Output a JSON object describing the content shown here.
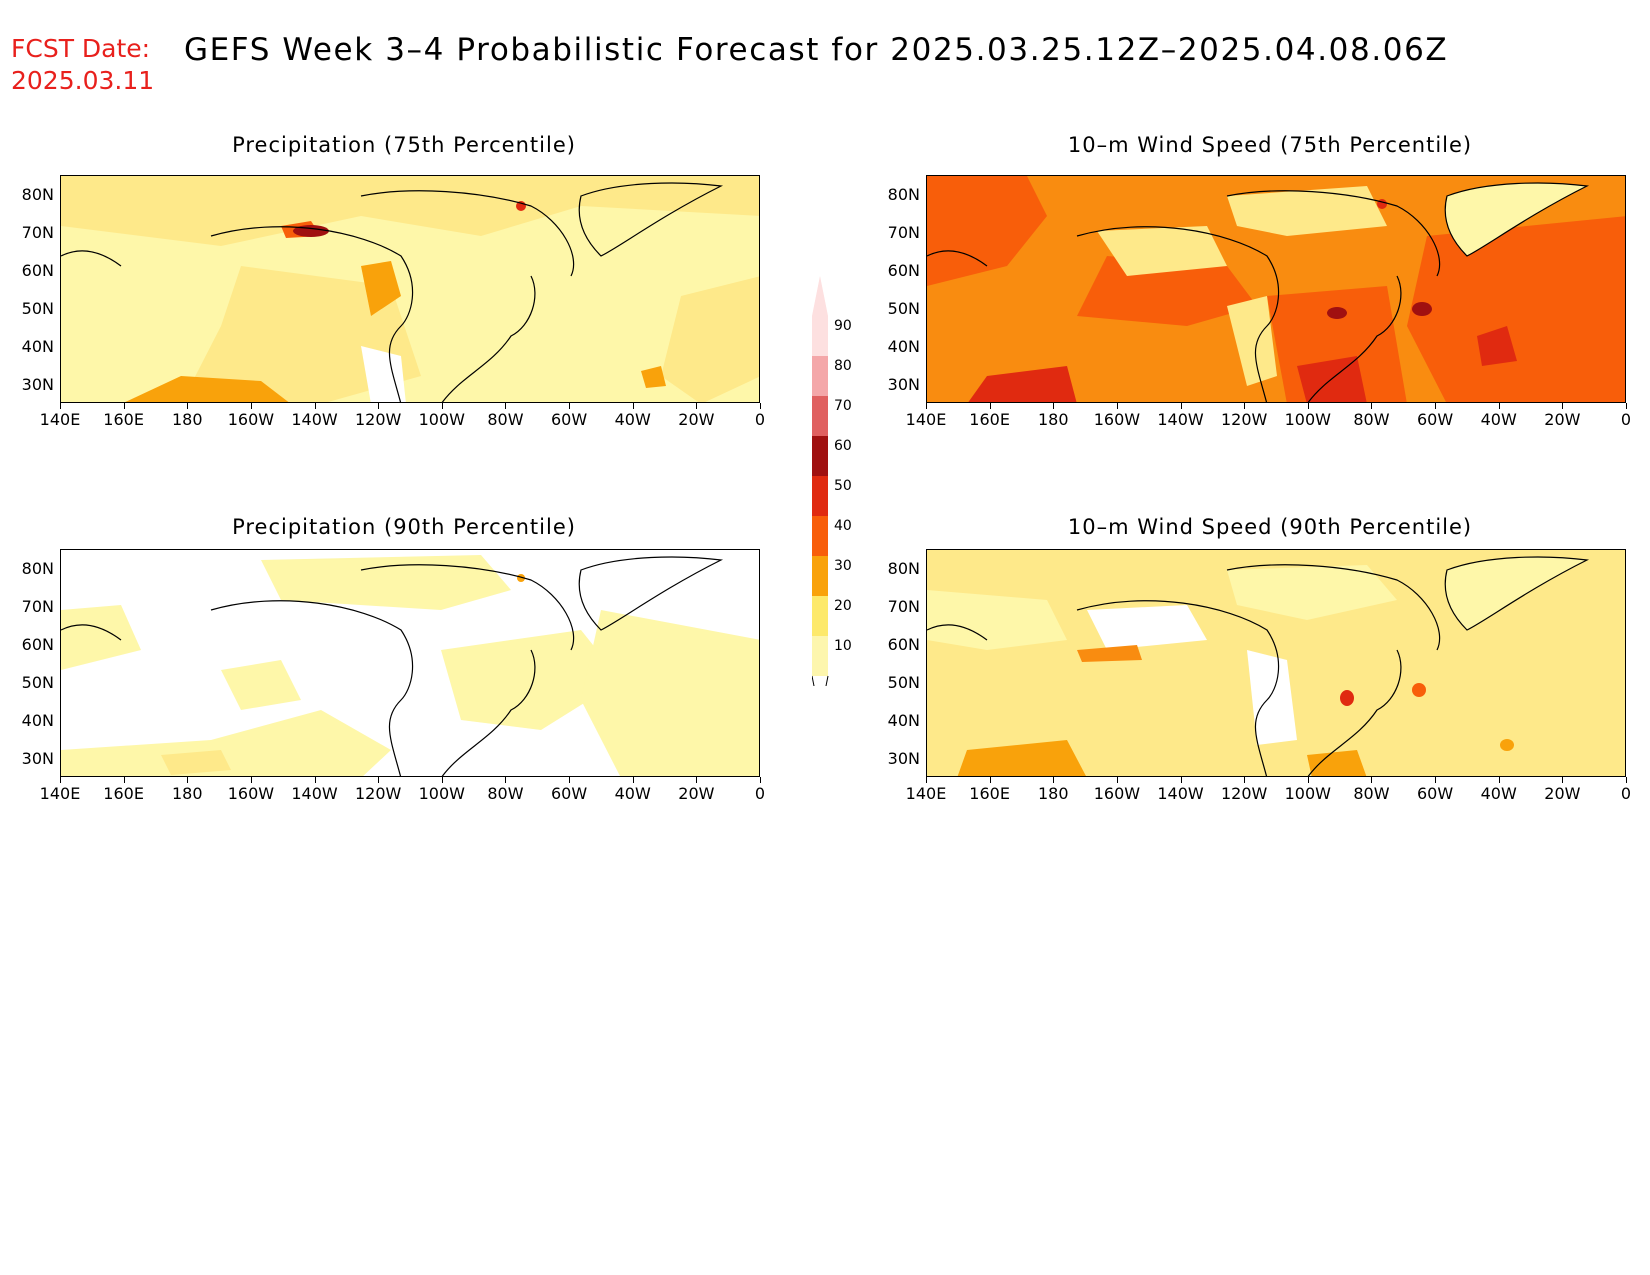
{
  "header": {
    "fcst_label": "FCST Date:",
    "fcst_date": "2025.03.11",
    "title": "GEFS Week 3–4 Probabilistic Forecast for 2025.03.25.12Z–2025.04.08.06Z"
  },
  "axes": {
    "lat_labels": [
      "80N",
      "70N",
      "60N",
      "50N",
      "40N",
      "30N"
    ],
    "lon_labels": [
      "140E",
      "160E",
      "180",
      "160W",
      "140W",
      "120W",
      "100W",
      "80W",
      "60W",
      "40W",
      "20W",
      "0"
    ]
  },
  "panels": [
    {
      "id": "p75",
      "title": "Precipitation (75th Percentile)",
      "variable": "precipitation",
      "percentile": 75,
      "fill": "#fef7a9",
      "coverage": "light-yellow dominant, orange patches"
    },
    {
      "id": "w75",
      "title": "10–m Wind Speed (75th Percentile)",
      "variable": "wind-speed",
      "percentile": 75,
      "fill": "#f98c10",
      "coverage": "orange/red dominant"
    },
    {
      "id": "p90",
      "title": "Precipitation (90th Percentile)",
      "variable": "precipitation",
      "percentile": 90,
      "fill": "#ffffff",
      "coverage": "mostly white, pale yellow patches"
    },
    {
      "id": "w90",
      "title": "10–m Wind Speed (90th Percentile)",
      "variable": "wind-speed",
      "percentile": 90,
      "fill": "#fee98a",
      "coverage": "yellow dominant"
    }
  ],
  "colorbar": {
    "labels": [
      "90",
      "80",
      "70",
      "60",
      "50",
      "40",
      "30",
      "20",
      "10"
    ],
    "colors": [
      "#fde0e0",
      "#f4a7a9",
      "#e06060",
      "#a01010",
      "#e02a10",
      "#f85e0a",
      "#f9a20b",
      "#fde96b",
      "#fdf6ad"
    ]
  }
}
